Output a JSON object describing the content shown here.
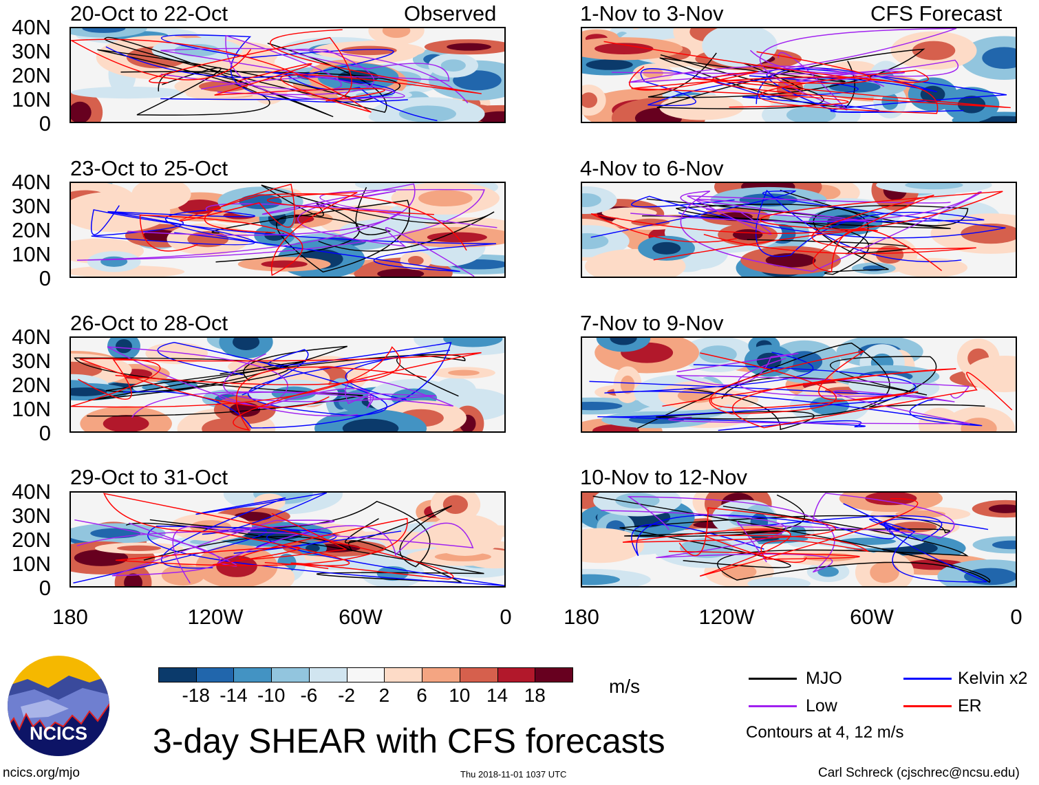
{
  "panels": {
    "left": [
      {
        "title": "20-Oct to 22-Oct",
        "tag": "Observed"
      },
      {
        "title": "23-Oct to 25-Oct"
      },
      {
        "title": "26-Oct to 28-Oct"
      },
      {
        "title": "29-Oct to 31-Oct"
      }
    ],
    "right": [
      {
        "title": "1-Nov to 3-Nov",
        "tag": "CFS Forecast"
      },
      {
        "title": "4-Nov to 6-Nov"
      },
      {
        "title": "7-Nov to 9-Nov"
      },
      {
        "title": "10-Nov to 12-Nov"
      }
    ]
  },
  "axes": {
    "lat_labels": [
      "40N",
      "30N",
      "20N",
      "10N",
      "0"
    ],
    "lon_labels": [
      "180",
      "120W",
      "60W",
      "0"
    ]
  },
  "colorbar": {
    "colors": [
      "#0b3a6b",
      "#2166ac",
      "#4393c3",
      "#92c5de",
      "#d1e5f0",
      "#f7f7f7",
      "#fddbc7",
      "#f4a582",
      "#d6604d",
      "#b2182b",
      "#67001f"
    ],
    "labels": [
      "-18",
      "-14",
      "-10",
      "-6",
      "-2",
      "2",
      "6",
      "10",
      "14",
      "18"
    ],
    "units": "m/s"
  },
  "legend": {
    "items": [
      {
        "label": "MJO",
        "color": "#000000"
      },
      {
        "label": "Kelvin x2",
        "color": "#0000ff"
      },
      {
        "label": "Low",
        "color": "#a020f0"
      },
      {
        "label": "ER",
        "color": "#ff0000"
      }
    ],
    "note": "Contours at 4, 12 m/s"
  },
  "title": "3-day SHEAR with CFS forecasts",
  "logo_text": "NCICS",
  "footer": {
    "url": "ncics.org/mjo",
    "timestamp": "Thu 2018-11-01 1037 UTC",
    "credit": "Carl Schreck (cjschrec@ncsu.edu)"
  }
}
